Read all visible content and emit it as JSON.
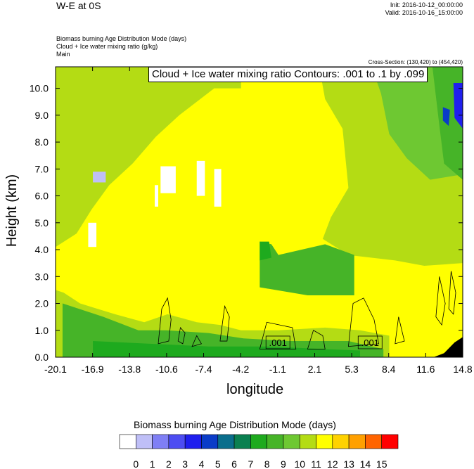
{
  "header": {
    "title": "W-E at 0S",
    "init": "Init: 2016-10-12_00:00:00",
    "valid": "Valid: 2016-10-16_15:00:00",
    "subtitle_lines": [
      "Biomass burning Age Distribution Mode    (days)",
      "Cloud + Ice water mixing ratio    (g/kg)",
      "Main"
    ],
    "cross_section": "Cross-Section: (130,420) to (454,420)",
    "contour_label": "Cloud + Ice water mixing ratio Contours: .001 to .1 by .099"
  },
  "chart_data": {
    "type": "heatmap",
    "xlabel": "longitude",
    "ylabel": "Height (km)",
    "xticks": [
      "-20.1",
      "-16.9",
      "-13.8",
      "-10.6",
      "-7.4",
      "-4.2",
      "-1.1",
      "2.1",
      "5.3",
      "8.4",
      "11.6",
      "14.8"
    ],
    "xlim": [
      -20.1,
      14.8
    ],
    "yticks": [
      "0.0",
      "1.0",
      "2.0",
      "3.0",
      "4.0",
      "5.0",
      "6.0",
      "7.0",
      "8.0",
      "9.0",
      "10.0"
    ],
    "ylim": [
      0,
      10.8
    ],
    "contour_labels": [
      ".001",
      ".001"
    ],
    "contour_label_positions": [
      [
        -1.1,
        0.55
      ],
      [
        6.8,
        0.55
      ]
    ],
    "colorbar": {
      "title": "Biomass burning Age Distribution Mode  (days)",
      "labels": [
        "0",
        "1",
        "2",
        "3",
        "4",
        "5",
        "6",
        "7",
        "8",
        "9",
        "10",
        "11",
        "12",
        "13",
        "14",
        "15"
      ],
      "colors": [
        "#ffffff",
        "#bfbff7",
        "#7f7ff5",
        "#4d4df2",
        "#1f1fee",
        "#0a3cc8",
        "#0a6e8c",
        "#0a8050",
        "#1eaa1e",
        "#46b428",
        "#6ec832",
        "#b4dc14",
        "#ffff00",
        "#ffd200",
        "#ffa000",
        "#ff6400",
        "#ff0000"
      ]
    }
  }
}
